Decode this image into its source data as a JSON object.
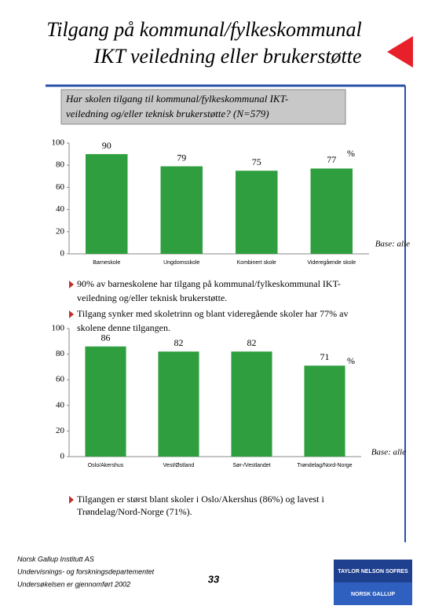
{
  "header": {
    "title_lines": [
      "Tilgang på kommunal/fylkeskommunal",
      "IKT veiledning eller brukerstøtte"
    ],
    "question": [
      "Har skolen tilgang til kommunal/fylkeskommunal IKT-",
      "veiledning og/eller teknisk brukerstøtte? (N=579)"
    ]
  },
  "chart_data": [
    {
      "type": "bar",
      "categories": [
        "Barneskole",
        "Ungdomsskole",
        "Kombinert skole",
        "Videregående skole"
      ],
      "values": [
        90,
        79,
        75,
        77
      ],
      "color": "#2e9e3e",
      "ylim": [
        0,
        100
      ],
      "yticks": [
        0,
        20,
        40,
        60,
        80,
        100
      ],
      "unit": "%",
      "note": "Base: alle"
    },
    {
      "type": "bar",
      "categories": [
        "Oslo/Akershus",
        "Vest/Østland",
        "Sør-/Vestlandet",
        "Trøndelag/Nord-Norge"
      ],
      "values": [
        86,
        82,
        82,
        71
      ],
      "color": "#2e9e3e",
      "ylim": [
        0,
        100
      ],
      "yticks": [
        0,
        20,
        40,
        60,
        80,
        100
      ],
      "unit": "%",
      "note": "Base: alle"
    }
  ],
  "bullets": [
    [
      "90% av barneskolene har tilgang på kommunal/fylkeskommunal IKT-",
      "veiledning og/eller teknisk brukerstøtte."
    ],
    [
      "Tilgang synker med skoletrinn og blant videregående skoler har 77% av",
      "skolene denne tilgangen."
    ],
    [
      "Tilgangen er størst blant skoler i Oslo/Akershus (86%) og lavest i",
      "Trøndelag/Nord-Norge (71%)."
    ]
  ],
  "footer": {
    "lines": [
      "Norsk Gallup Institutt AS",
      "Undervisnings- og forskningsdepartementet",
      "Undersøkelsen er gjennomført 2002"
    ],
    "page": "33",
    "logo_top": "TAYLOR NELSON SOFRES",
    "logo_bottom": "NORSK GALLUP"
  }
}
